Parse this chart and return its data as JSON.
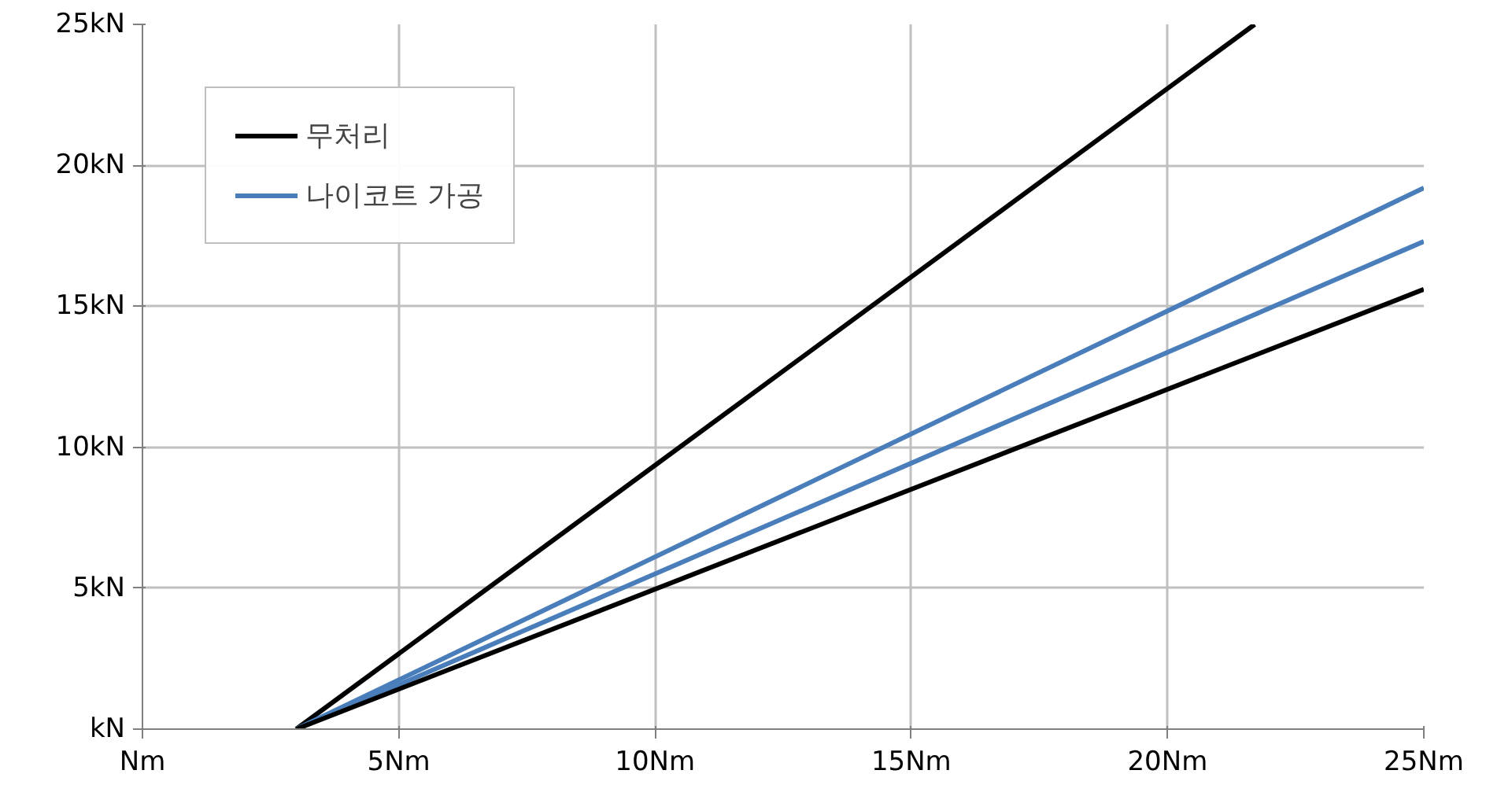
{
  "chart_data": {
    "type": "line",
    "xlim": [
      0,
      25
    ],
    "ylim": [
      0,
      25
    ],
    "xticks": [
      {
        "value": 0,
        "label": "Nm"
      },
      {
        "value": 5,
        "label": "5Nm"
      },
      {
        "value": 10,
        "label": "10Nm"
      },
      {
        "value": 15,
        "label": "15Nm"
      },
      {
        "value": 20,
        "label": "20Nm"
      },
      {
        "value": 25,
        "label": "25Nm"
      }
    ],
    "yticks": [
      {
        "value": 0,
        "label": "kN"
      },
      {
        "value": 5,
        "label": "5kN"
      },
      {
        "value": 10,
        "label": "10kN"
      },
      {
        "value": 15,
        "label": "15kN"
      },
      {
        "value": 20,
        "label": "20kN"
      },
      {
        "value": 25,
        "label": "25kN"
      }
    ],
    "series": [
      {
        "name": "무처리",
        "color": "#000000",
        "x": [
          3,
          21.7
        ],
        "values": [
          0,
          25
        ]
      },
      {
        "name": "나이코트 가공",
        "color": "#4a7ebb",
        "x": [
          3,
          25
        ],
        "values": [
          0,
          19.2
        ]
      },
      {
        "color": "#4a7ebb",
        "x": [
          3,
          25
        ],
        "values": [
          0,
          17.3
        ]
      },
      {
        "color": "#000000",
        "x": [
          3,
          25
        ],
        "values": [
          0,
          15.6
        ]
      }
    ],
    "grid": true,
    "legend": "top left",
    "line_style": "solid",
    "marker": "none"
  }
}
